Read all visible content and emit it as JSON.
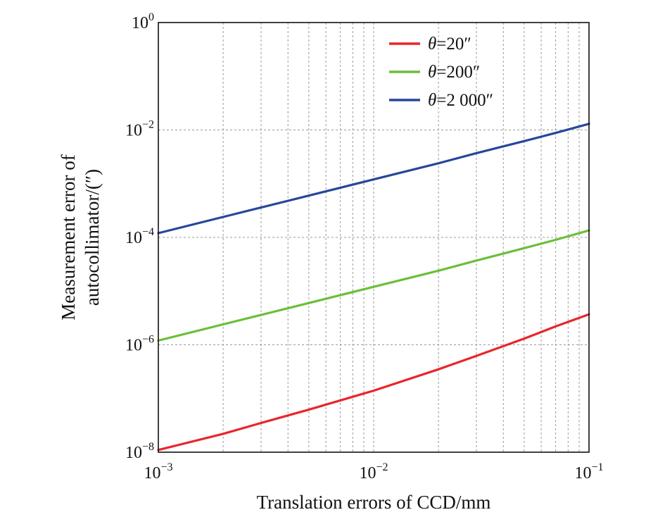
{
  "chart_data": {
    "type": "line",
    "xlabel": "Translation errors of CCD/mm",
    "ylabel": [
      "Measurement error of",
      "autocollimator/(″)"
    ],
    "x_scale": "log",
    "y_scale": "log",
    "xlim": [
      0.001,
      0.1
    ],
    "ylim": [
      1e-08,
      1
    ],
    "grid": true,
    "x_ticks": [
      {
        "base": "10",
        "exp": "−3",
        "value": 0.001
      },
      {
        "base": "10",
        "exp": "−2",
        "value": 0.01
      },
      {
        "base": "10",
        "exp": "−1",
        "value": 0.1
      }
    ],
    "y_ticks": [
      {
        "base": "10",
        "exp": "0",
        "value": 1
      },
      {
        "base": "10",
        "exp": "−2",
        "value": 0.01
      },
      {
        "base": "10",
        "exp": "−4",
        "value": 0.0001
      },
      {
        "base": "10",
        "exp": "−6",
        "value": 1e-06
      },
      {
        "base": "10",
        "exp": "−8",
        "value": 1e-08
      }
    ],
    "legend_position": "top-right",
    "series": [
      {
        "name": "θ=20″",
        "theta_symbol": "θ",
        "theta_value": "=20″",
        "color": "#e8262b",
        "x": [
          0.001,
          0.002,
          0.003,
          0.005,
          0.01,
          0.02,
          0.03,
          0.05,
          0.07,
          0.1
        ],
        "y": [
          1.1e-08,
          2.2e-08,
          3.5e-08,
          6.2e-08,
          1.4e-07,
          3.5e-07,
          6.2e-07,
          1.3e-06,
          2.2e-06,
          3.7e-06
        ]
      },
      {
        "name": "θ=200″",
        "theta_symbol": "θ",
        "theta_value": "=200″",
        "color": "#6abf3a",
        "x": [
          0.001,
          0.002,
          0.003,
          0.005,
          0.01,
          0.02,
          0.03,
          0.05,
          0.07,
          0.1
        ],
        "y": [
          1.2e-06,
          2.4e-06,
          3.6e-06,
          6e-06,
          1.2e-05,
          2.4e-05,
          3.7e-05,
          6.3e-05,
          9e-05,
          0.000135
        ]
      },
      {
        "name": "θ=2 000″",
        "theta_symbol": "θ",
        "theta_value": "=2 000″",
        "color": "#27479b",
        "x": [
          0.001,
          0.002,
          0.003,
          0.005,
          0.01,
          0.02,
          0.03,
          0.05,
          0.07,
          0.1
        ],
        "y": [
          0.00012,
          0.00024,
          0.00036,
          0.0006,
          0.0012,
          0.0024,
          0.0037,
          0.0062,
          0.0088,
          0.013
        ]
      }
    ]
  }
}
